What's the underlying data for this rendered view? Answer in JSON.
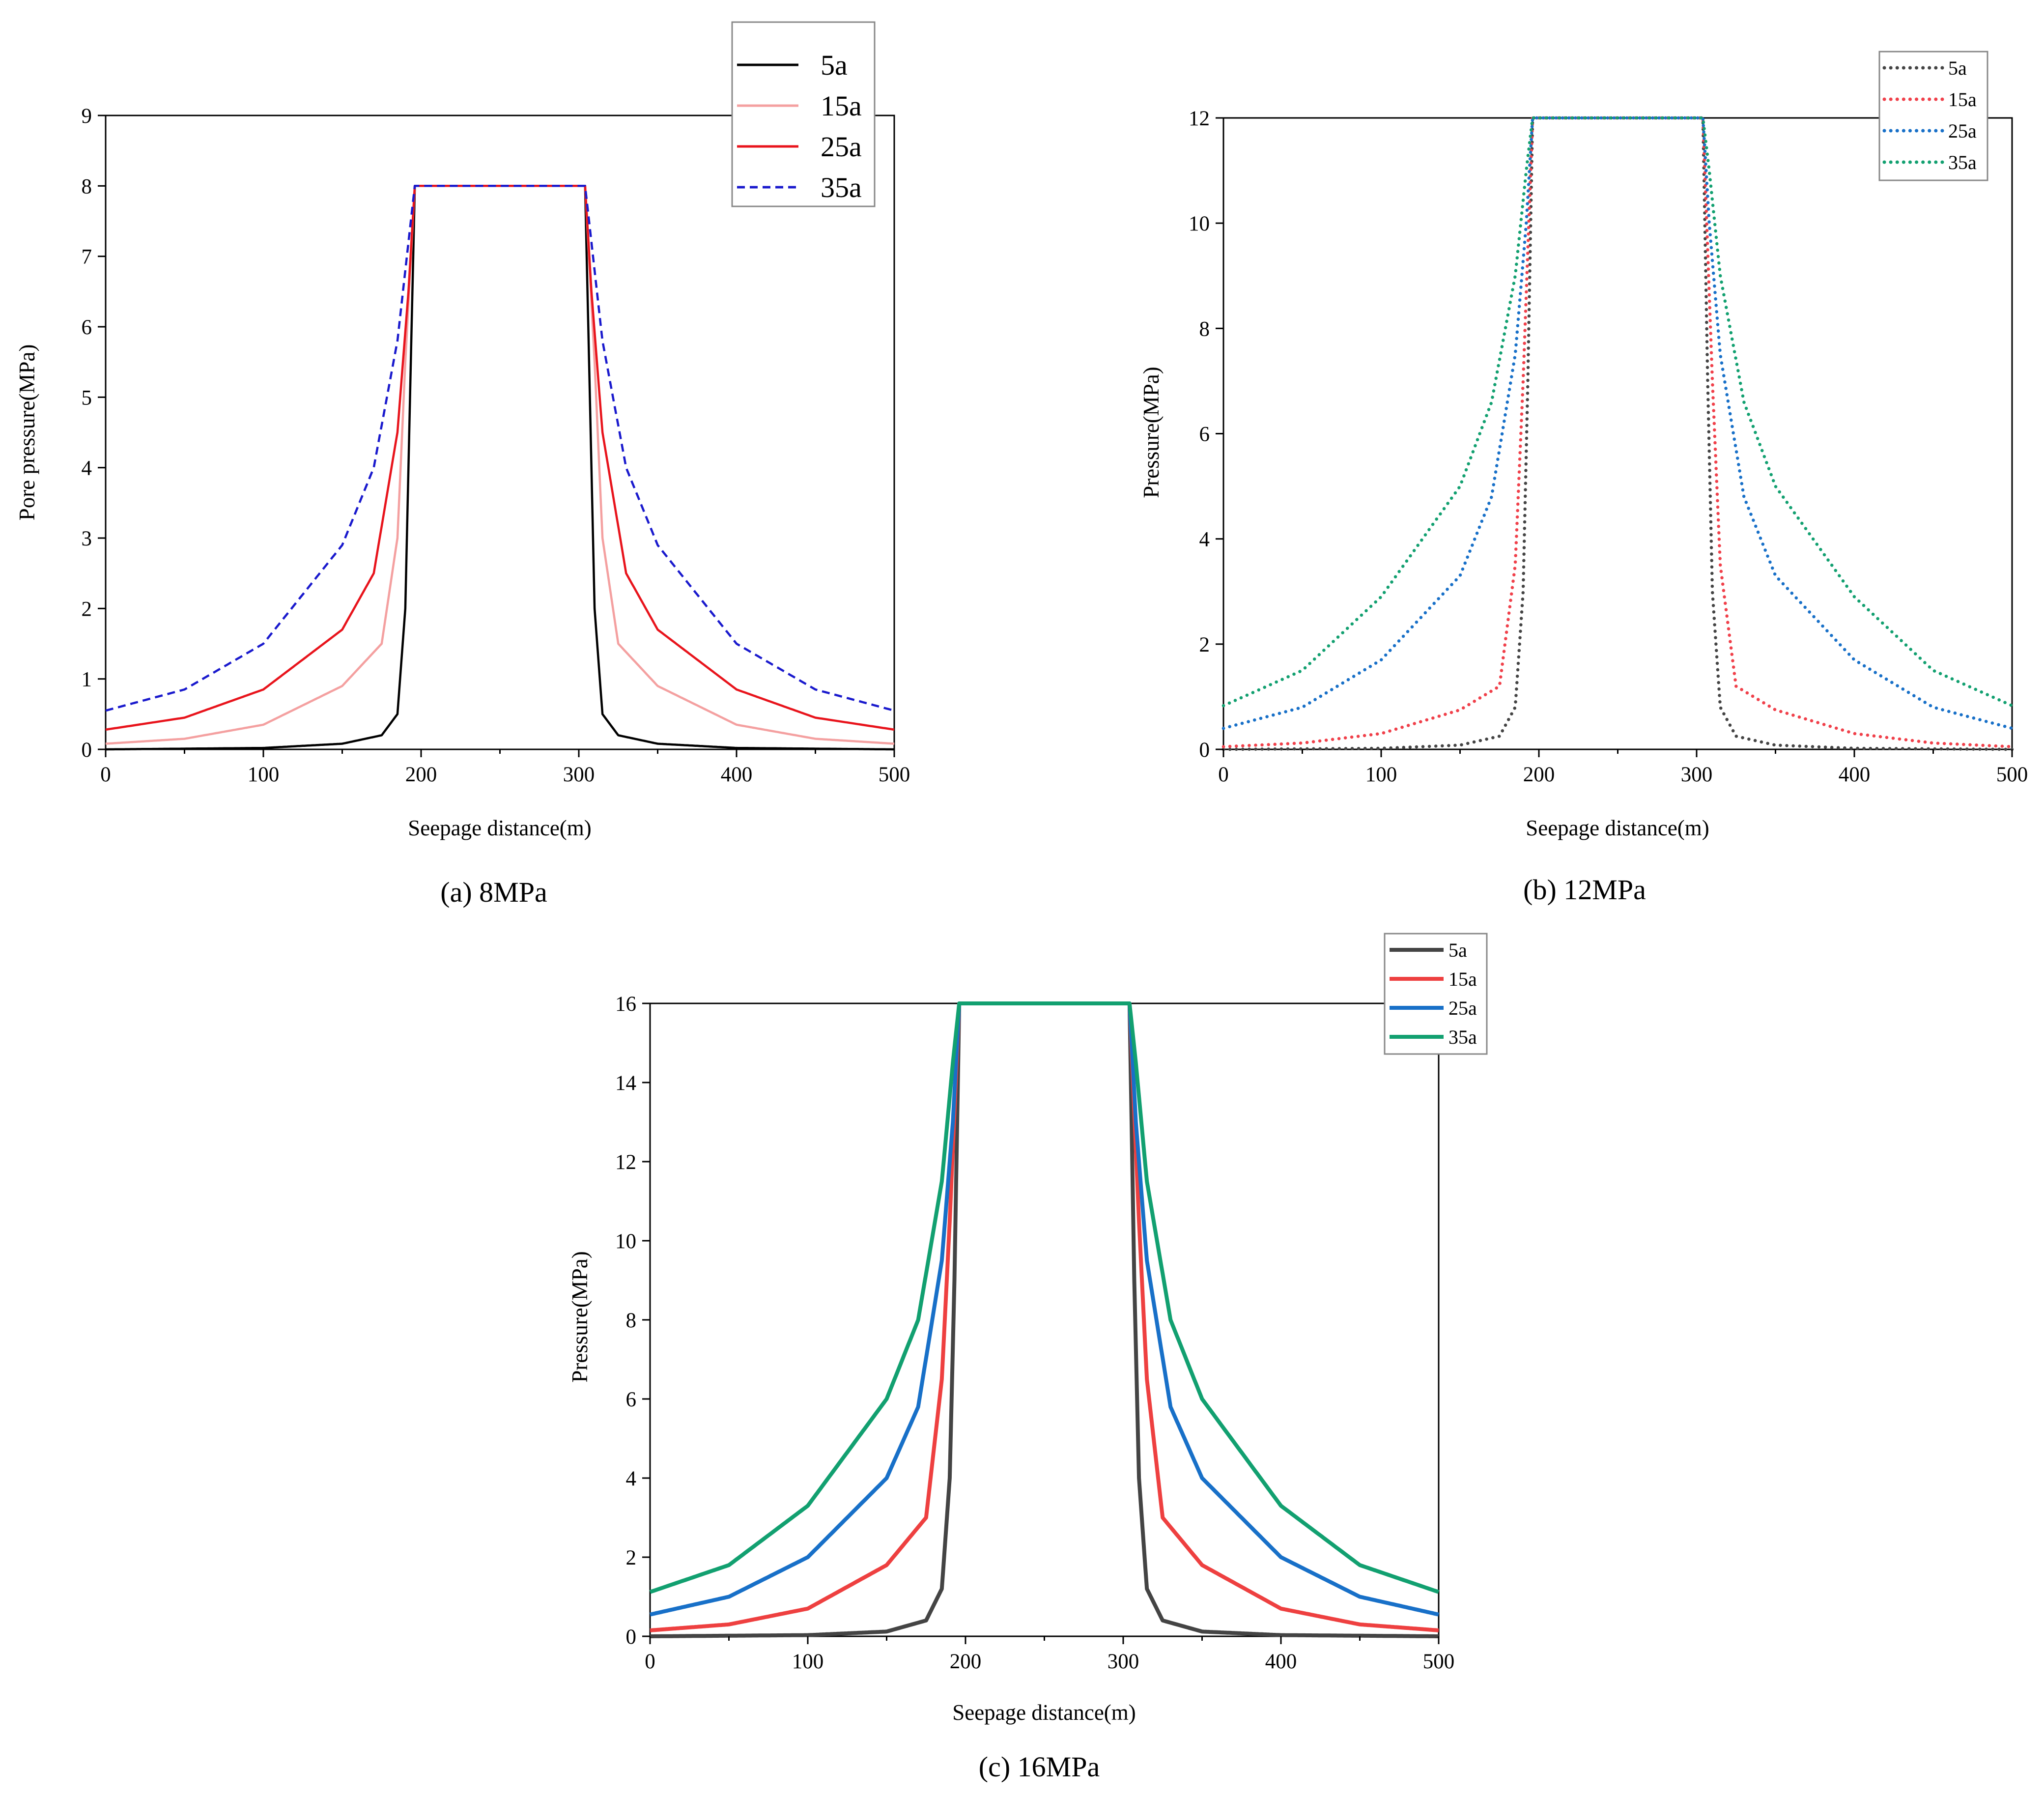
{
  "chart_data": [
    {
      "id": "a",
      "type": "line",
      "caption": "(a) 8MPa",
      "xlabel": "Seepage distance(m)",
      "ylabel": "Pore pressure(MPa)",
      "xlim": [
        0,
        500
      ],
      "ylim": [
        0,
        9
      ],
      "xticks": [
        0,
        100,
        200,
        300,
        400,
        500
      ],
      "yticks": [
        0,
        1,
        2,
        3,
        4,
        5,
        6,
        7,
        8,
        9
      ],
      "plateau": 8,
      "legend_position": "top-right, outside plot",
      "series": [
        {
          "name": "5a",
          "color": "#000000",
          "style": "solid",
          "min_value": 0.0,
          "profile": [
            [
              0,
              0.0
            ],
            [
              100,
              0.02
            ],
            [
              150,
              0.08
            ],
            [
              175,
              0.2
            ],
            [
              185,
              0.5
            ],
            [
              190,
              2.0
            ],
            [
              193,
              5.0
            ],
            [
              196,
              8
            ],
            [
              304,
              8
            ],
            [
              307,
              5.0
            ],
            [
              310,
              2.0
            ],
            [
              315,
              0.5
            ],
            [
              325,
              0.2
            ],
            [
              350,
              0.08
            ],
            [
              400,
              0.02
            ],
            [
              500,
              0.0
            ]
          ]
        },
        {
          "name": "15a",
          "color": "#f4a0a0",
          "style": "solid",
          "min_value": 0.08,
          "profile": [
            [
              0,
              0.08
            ],
            [
              50,
              0.15
            ],
            [
              100,
              0.35
            ],
            [
              150,
              0.9
            ],
            [
              175,
              1.5
            ],
            [
              185,
              3.0
            ],
            [
              190,
              5.5
            ],
            [
              196,
              8
            ],
            [
              304,
              8
            ],
            [
              310,
              5.5
            ],
            [
              315,
              3.0
            ],
            [
              325,
              1.5
            ],
            [
              350,
              0.9
            ],
            [
              400,
              0.35
            ],
            [
              450,
              0.15
            ],
            [
              500,
              0.08
            ]
          ]
        },
        {
          "name": "25a",
          "color": "#e8141c",
          "style": "solid",
          "min_value": 0.28,
          "profile": [
            [
              0,
              0.28
            ],
            [
              50,
              0.45
            ],
            [
              100,
              0.85
            ],
            [
              150,
              1.7
            ],
            [
              170,
              2.5
            ],
            [
              185,
              4.5
            ],
            [
              192,
              6.5
            ],
            [
              196,
              8
            ],
            [
              304,
              8
            ],
            [
              308,
              6.5
            ],
            [
              315,
              4.5
            ],
            [
              330,
              2.5
            ],
            [
              350,
              1.7
            ],
            [
              400,
              0.85
            ],
            [
              450,
              0.45
            ],
            [
              500,
              0.28
            ]
          ]
        },
        {
          "name": "35a",
          "color": "#1a1acd",
          "style": "dashed",
          "min_value": 0.55,
          "profile": [
            [
              0,
              0.55
            ],
            [
              50,
              0.85
            ],
            [
              100,
              1.5
            ],
            [
              150,
              2.9
            ],
            [
              170,
              4.0
            ],
            [
              185,
              5.8
            ],
            [
              192,
              7.2
            ],
            [
              196,
              8
            ],
            [
              304,
              8
            ],
            [
              308,
              7.2
            ],
            [
              315,
              5.8
            ],
            [
              330,
              4.0
            ],
            [
              350,
              2.9
            ],
            [
              400,
              1.5
            ],
            [
              450,
              0.85
            ],
            [
              500,
              0.55
            ]
          ]
        }
      ]
    },
    {
      "id": "b",
      "type": "line",
      "caption": "(b) 12MPa",
      "xlabel": "Seepage distance(m)",
      "ylabel": "Pressure(MPa)",
      "xlim": [
        0,
        500
      ],
      "ylim": [
        0,
        12
      ],
      "xticks": [
        0,
        100,
        200,
        300,
        400,
        500
      ],
      "yticks": [
        0,
        2,
        4,
        6,
        8,
        10,
        12
      ],
      "plateau": 12,
      "legend_position": "top-right, outside plot",
      "series": [
        {
          "name": "5a",
          "color": "#444444",
          "style": "dotted",
          "min_value": 0.0,
          "profile": [
            [
              0,
              0.0
            ],
            [
              100,
              0.02
            ],
            [
              150,
              0.08
            ],
            [
              175,
              0.25
            ],
            [
              185,
              0.8
            ],
            [
              190,
              3.0
            ],
            [
              193,
              7.0
            ],
            [
              196,
              12
            ],
            [
              304,
              12
            ],
            [
              307,
              7.0
            ],
            [
              310,
              3.0
            ],
            [
              315,
              0.8
            ],
            [
              325,
              0.25
            ],
            [
              350,
              0.08
            ],
            [
              400,
              0.02
            ],
            [
              500,
              0.0
            ]
          ]
        },
        {
          "name": "15a",
          "color": "#f0404a",
          "style": "dotted",
          "min_value": 0.05,
          "profile": [
            [
              0,
              0.05
            ],
            [
              50,
              0.12
            ],
            [
              100,
              0.3
            ],
            [
              150,
              0.75
            ],
            [
              175,
              1.2
            ],
            [
              185,
              3.5
            ],
            [
              190,
              7.0
            ],
            [
              196,
              12
            ],
            [
              304,
              12
            ],
            [
              310,
              7.0
            ],
            [
              315,
              3.5
            ],
            [
              325,
              1.2
            ],
            [
              350,
              0.75
            ],
            [
              400,
              0.3
            ],
            [
              450,
              0.12
            ],
            [
              500,
              0.05
            ]
          ]
        },
        {
          "name": "25a",
          "color": "#1870c8",
          "style": "dotted",
          "min_value": 0.4,
          "profile": [
            [
              0,
              0.4
            ],
            [
              50,
              0.8
            ],
            [
              100,
              1.7
            ],
            [
              150,
              3.3
            ],
            [
              170,
              4.8
            ],
            [
              185,
              7.5
            ],
            [
              192,
              10.0
            ],
            [
              196,
              12
            ],
            [
              304,
              12
            ],
            [
              308,
              10.0
            ],
            [
              315,
              7.5
            ],
            [
              330,
              4.8
            ],
            [
              350,
              3.3
            ],
            [
              400,
              1.7
            ],
            [
              450,
              0.8
            ],
            [
              500,
              0.4
            ]
          ]
        },
        {
          "name": "35a",
          "color": "#12a070",
          "style": "dotted",
          "min_value": 0.83,
          "profile": [
            [
              0,
              0.83
            ],
            [
              50,
              1.5
            ],
            [
              100,
              2.9
            ],
            [
              150,
              5.0
            ],
            [
              170,
              6.6
            ],
            [
              185,
              9.0
            ],
            [
              192,
              11.0
            ],
            [
              196,
              12
            ],
            [
              304,
              12
            ],
            [
              308,
              11.0
            ],
            [
              315,
              9.0
            ],
            [
              330,
              6.6
            ],
            [
              350,
              5.0
            ],
            [
              400,
              2.9
            ],
            [
              450,
              1.5
            ],
            [
              500,
              0.83
            ]
          ]
        }
      ]
    },
    {
      "id": "c",
      "type": "line",
      "caption": "(c) 16MPa",
      "xlabel": "Seepage distance(m)",
      "ylabel": "Pressure(MPa)",
      "xlim": [
        0,
        500
      ],
      "ylim": [
        0,
        16
      ],
      "xticks": [
        0,
        100,
        200,
        300,
        400,
        500
      ],
      "yticks": [
        0,
        2,
        4,
        6,
        8,
        10,
        12,
        14,
        16
      ],
      "plateau": 16,
      "legend_position": "top-right, outside plot",
      "series": [
        {
          "name": "5a",
          "color": "#444444",
          "style": "solid",
          "min_value": 0.0,
          "profile": [
            [
              0,
              0.0
            ],
            [
              100,
              0.03
            ],
            [
              150,
              0.12
            ],
            [
              175,
              0.4
            ],
            [
              185,
              1.2
            ],
            [
              190,
              4.0
            ],
            [
              193,
              9.0
            ],
            [
              196,
              16
            ],
            [
              304,
              16
            ],
            [
              307,
              9.0
            ],
            [
              310,
              4.0
            ],
            [
              315,
              1.2
            ],
            [
              325,
              0.4
            ],
            [
              350,
              0.12
            ],
            [
              400,
              0.03
            ],
            [
              500,
              0.0
            ]
          ]
        },
        {
          "name": "15a",
          "color": "#ee4040",
          "style": "solid",
          "min_value": 0.15,
          "profile": [
            [
              0,
              0.15
            ],
            [
              50,
              0.3
            ],
            [
              100,
              0.7
            ],
            [
              150,
              1.8
            ],
            [
              175,
              3.0
            ],
            [
              185,
              6.5
            ],
            [
              190,
              10.5
            ],
            [
              196,
              16
            ],
            [
              304,
              16
            ],
            [
              310,
              10.5
            ],
            [
              315,
              6.5
            ],
            [
              325,
              3.0
            ],
            [
              350,
              1.8
            ],
            [
              400,
              0.7
            ],
            [
              450,
              0.3
            ],
            [
              500,
              0.15
            ]
          ]
        },
        {
          "name": "25a",
          "color": "#1870c8",
          "style": "solid",
          "min_value": 0.55,
          "profile": [
            [
              0,
              0.55
            ],
            [
              50,
              1.0
            ],
            [
              100,
              2.0
            ],
            [
              150,
              4.0
            ],
            [
              170,
              5.8
            ],
            [
              185,
              9.5
            ],
            [
              192,
              13.0
            ],
            [
              196,
              16
            ],
            [
              304,
              16
            ],
            [
              308,
              13.0
            ],
            [
              315,
              9.5
            ],
            [
              330,
              5.8
            ],
            [
              350,
              4.0
            ],
            [
              400,
              2.0
            ],
            [
              450,
              1.0
            ],
            [
              500,
              0.55
            ]
          ]
        },
        {
          "name": "35a",
          "color": "#12a070",
          "style": "solid",
          "min_value": 1.12,
          "profile": [
            [
              0,
              1.12
            ],
            [
              50,
              1.8
            ],
            [
              100,
              3.3
            ],
            [
              150,
              6.0
            ],
            [
              170,
              8.0
            ],
            [
              185,
              11.5
            ],
            [
              192,
              14.5
            ],
            [
              196,
              16
            ],
            [
              304,
              16
            ],
            [
              308,
              14.5
            ],
            [
              315,
              11.5
            ],
            [
              330,
              8.0
            ],
            [
              350,
              6.0
            ],
            [
              400,
              3.3
            ],
            [
              450,
              1.8
            ],
            [
              500,
              1.12
            ]
          ]
        }
      ]
    }
  ]
}
